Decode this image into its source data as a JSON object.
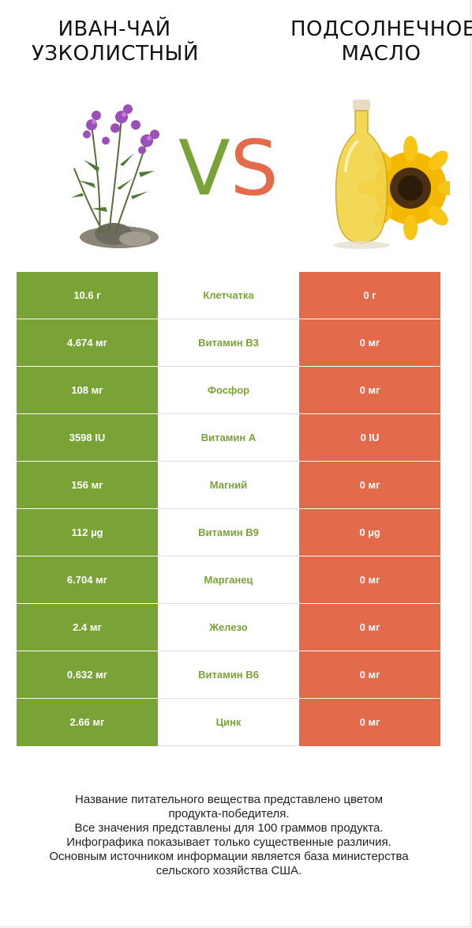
{
  "header": {
    "left_title": [
      "Иван-чай",
      "узколистный"
    ],
    "right_title": [
      "Подсолнечное",
      "масло"
    ],
    "vs": {
      "v": "V",
      "s": "S"
    }
  },
  "colors": {
    "winner_left": "#79a336",
    "winner_right": "#e46a4c"
  },
  "images": {
    "left": "fireweed-plant-icon",
    "right": "sunflower-oil-bottle-icon"
  },
  "rows": [
    {
      "left": "10.6 г",
      "name": "Клетчатка",
      "right": "0 г"
    },
    {
      "left": "4.674 мг",
      "name": "Витамин B3",
      "right": "0 мг"
    },
    {
      "left": "108 мг",
      "name": "Фосфор",
      "right": "0 мг"
    },
    {
      "left": "3598 IU",
      "name": "Витамин A",
      "right": "0 IU"
    },
    {
      "left": "156 мг",
      "name": "Магний",
      "right": "0 мг"
    },
    {
      "left": "112 µg",
      "name": "Витамин B9",
      "right": "0 µg"
    },
    {
      "left": "6.704 мг",
      "name": "Марганец",
      "right": "0 мг"
    },
    {
      "left": "2.4 мг",
      "name": "Железо",
      "right": "0 мг"
    },
    {
      "left": "0.632 мг",
      "name": "Витамин B6",
      "right": "0 мг"
    },
    {
      "left": "2.66 мг",
      "name": "Цинк",
      "right": "0 мг"
    }
  ],
  "footnote": [
    "Название питательного вещества представлено цветом",
    "продукта-победителя.",
    "Все значения представлены для 100 граммов продукта.",
    "Инфографика показывает только существенные различия.",
    "Основным источником информации является база министерства",
    "сельского хозяйства США."
  ]
}
